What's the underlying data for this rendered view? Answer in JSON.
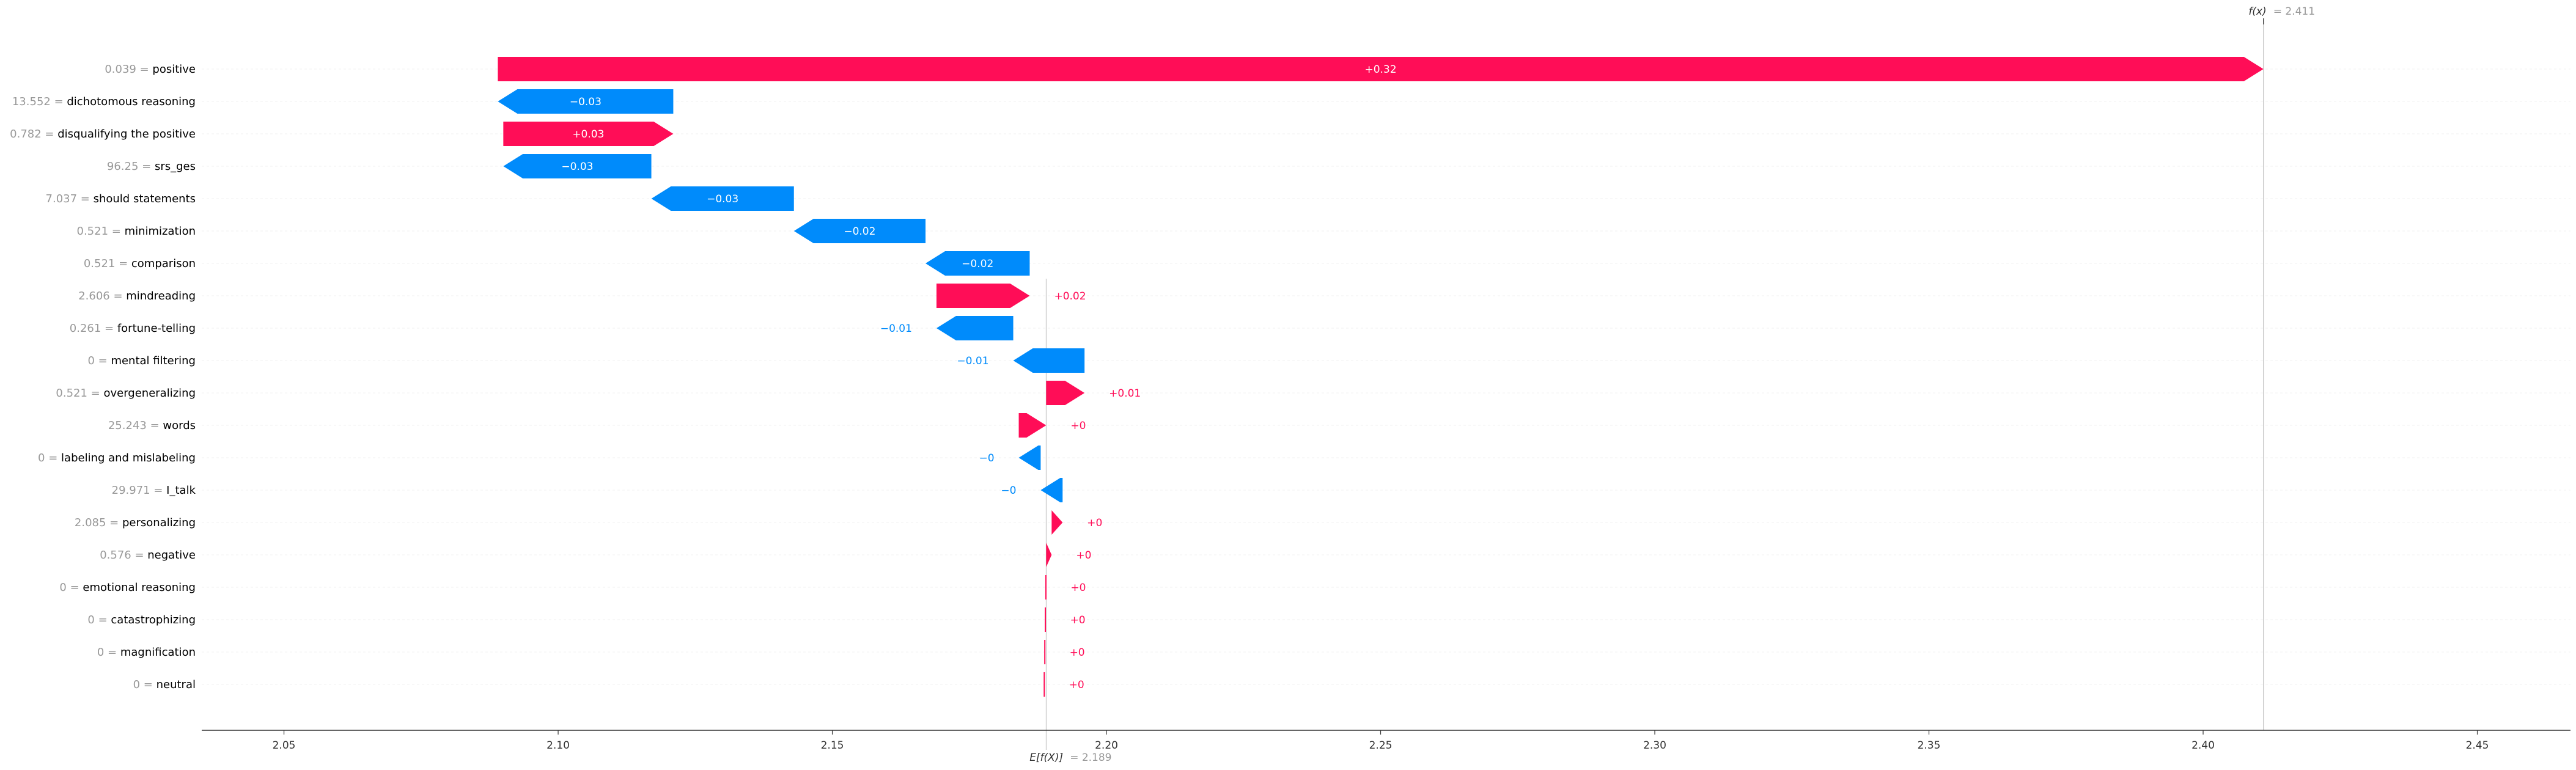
{
  "chart_data": {
    "type": "waterfall",
    "title": "",
    "xlabel": "",
    "ylabel": "",
    "base_value": 2.189,
    "base_label": "E[f(X)]",
    "base_value_text": "= 2.189",
    "final_value": 2.411,
    "final_label": "f(x)",
    "final_value_text": "= 2.411",
    "xlim": [
      2.035,
      2.467
    ],
    "xticks": [
      2.05,
      2.1,
      2.15,
      2.2,
      2.25,
      2.3,
      2.35,
      2.4,
      2.45
    ],
    "xtick_labels": [
      "2.05",
      "2.10",
      "2.15",
      "2.20",
      "2.25",
      "2.30",
      "2.35",
      "2.40",
      "2.45"
    ],
    "colors": {
      "positive": "#ff0d57",
      "negative": "#008bfb"
    },
    "features": [
      {
        "value_text": "0.039",
        "name": "positive",
        "contribution": 0.322,
        "label": "+0.32"
      },
      {
        "value_text": "13.552",
        "name": "dichotomous reasoning",
        "contribution": -0.032,
        "label": "−0.03"
      },
      {
        "value_text": "0.782",
        "name": "disqualifying the positive",
        "contribution": 0.031,
        "label": "+0.03"
      },
      {
        "value_text": "96.25",
        "name": "srs_ges",
        "contribution": -0.027,
        "label": "−0.03"
      },
      {
        "value_text": "7.037",
        "name": "should statements",
        "contribution": -0.026,
        "label": "−0.03"
      },
      {
        "value_text": "0.521",
        "name": "minimization",
        "contribution": -0.024,
        "label": "−0.02"
      },
      {
        "value_text": "0.521",
        "name": "comparison",
        "contribution": -0.019,
        "label": "−0.02"
      },
      {
        "value_text": "2.606",
        "name": "mindreading",
        "contribution": 0.017,
        "label": "+0.02"
      },
      {
        "value_text": "0.261",
        "name": "fortune-telling",
        "contribution": -0.014,
        "label": "−0.01"
      },
      {
        "value_text": "0",
        "name": "mental filtering",
        "contribution": -0.013,
        "label": "−0.01"
      },
      {
        "value_text": "0.521",
        "name": "overgeneralizing",
        "contribution": 0.007,
        "label": "+0.01"
      },
      {
        "value_text": "25.243",
        "name": "words",
        "contribution": 0.005,
        "label": "+0"
      },
      {
        "value_text": "0",
        "name": "labeling and mislabeling",
        "contribution": -0.004,
        "label": "−0"
      },
      {
        "value_text": "29.971",
        "name": "I_talk",
        "contribution": -0.004,
        "label": "−0"
      },
      {
        "value_text": "2.085",
        "name": "personalizing",
        "contribution": 0.002,
        "label": "+0"
      },
      {
        "value_text": "0.576",
        "name": "negative",
        "contribution": 0.001,
        "label": "+0"
      },
      {
        "value_text": "0",
        "name": "emotional reasoning",
        "contribution": 0.0001,
        "label": "+0"
      },
      {
        "value_text": "0",
        "name": "catastrophizing",
        "contribution": 0.0001,
        "label": "+0"
      },
      {
        "value_text": "0",
        "name": "magnification",
        "contribution": 0.0001,
        "label": "+0"
      },
      {
        "value_text": "0",
        "name": "neutral",
        "contribution": 0.0001,
        "label": "+0"
      }
    ]
  }
}
